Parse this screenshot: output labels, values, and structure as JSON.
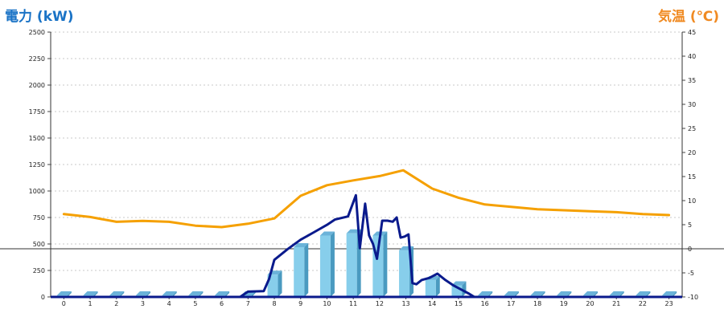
{
  "chart_data": {
    "type": "bar",
    "left_axis": {
      "title": "電力 (kW)",
      "min": 0,
      "max": 2500,
      "ticks": [
        "0",
        "250",
        "500",
        "750",
        "1000",
        "1250",
        "1500",
        "1750",
        "2000",
        "2250",
        "2500"
      ]
    },
    "right_axis": {
      "title": "気温 (℃)",
      "min": -10,
      "max": 45,
      "ticks": [
        "-10",
        "-5",
        "0",
        "5",
        "10",
        "15",
        "20",
        "25",
        "30",
        "35",
        "40",
        "45"
      ]
    },
    "categories": [
      "0",
      "1",
      "2",
      "3",
      "4",
      "5",
      "6",
      "7",
      "8",
      "9",
      "10",
      "11",
      "12",
      "13",
      "14",
      "15",
      "16",
      "17",
      "18",
      "19",
      "20",
      "21",
      "22",
      "23"
    ],
    "grid": true,
    "colors": {
      "bar": "#87ceeb",
      "bar_side": "#4a9ac0",
      "bar_top": "#6bb3d9",
      "power_line": "#0a1a8c",
      "temp_line": "#f5a000",
      "zero_line": "#333333"
    },
    "series": [
      {
        "axis": "left",
        "type": "bar",
        "values": [
          0,
          0,
          0,
          0,
          0,
          0,
          0,
          0,
          210,
          470,
          580,
          600,
          580,
          440,
          160,
          110,
          0,
          0,
          0,
          0,
          0,
          0,
          0,
          0
        ]
      },
      {
        "axis": "left",
        "type": "line",
        "points": [
          [
            0,
            0
          ],
          [
            1,
            0
          ],
          [
            2,
            0
          ],
          [
            3,
            0
          ],
          [
            4,
            0
          ],
          [
            5,
            0
          ],
          [
            6,
            0
          ],
          [
            6.7,
            0
          ],
          [
            7,
            50
          ],
          [
            7.6,
            55
          ],
          [
            7.8,
            170
          ],
          [
            8,
            350
          ],
          [
            8.5,
            450
          ],
          [
            9,
            540
          ],
          [
            9.5,
            610
          ],
          [
            10,
            680
          ],
          [
            10.3,
            730
          ],
          [
            10.8,
            760
          ],
          [
            11.1,
            960
          ],
          [
            11.25,
            460
          ],
          [
            11.45,
            880
          ],
          [
            11.6,
            580
          ],
          [
            11.75,
            500
          ],
          [
            11.9,
            360
          ],
          [
            12.1,
            720
          ],
          [
            12.3,
            720
          ],
          [
            12.5,
            710
          ],
          [
            12.65,
            750
          ],
          [
            12.8,
            560
          ],
          [
            12.95,
            570
          ],
          [
            13.1,
            590
          ],
          [
            13.25,
            130
          ],
          [
            13.4,
            120
          ],
          [
            13.6,
            160
          ],
          [
            13.9,
            180
          ],
          [
            14.2,
            220
          ],
          [
            14.5,
            160
          ],
          [
            14.8,
            110
          ],
          [
            15.1,
            70
          ],
          [
            15.4,
            30
          ],
          [
            15.6,
            0
          ],
          [
            16,
            0
          ],
          [
            17,
            0
          ],
          [
            18,
            0
          ],
          [
            19,
            0
          ],
          [
            20,
            0
          ],
          [
            21,
            0
          ],
          [
            22,
            0
          ],
          [
            23,
            0
          ]
        ]
      },
      {
        "axis": "right",
        "type": "line",
        "points": [
          [
            0,
            7.2
          ],
          [
            1,
            6.6
          ],
          [
            2,
            5.6
          ],
          [
            3,
            5.8
          ],
          [
            4,
            5.6
          ],
          [
            5,
            4.8
          ],
          [
            6,
            4.5
          ],
          [
            7,
            5.2
          ],
          [
            8,
            6.3
          ],
          [
            9,
            11
          ],
          [
            10,
            13.2
          ],
          [
            11,
            14.2
          ],
          [
            12,
            15.1
          ],
          [
            12.9,
            16.3
          ],
          [
            14,
            12.5
          ],
          [
            15,
            10.6
          ],
          [
            16,
            9.2
          ],
          [
            17,
            8.7
          ],
          [
            18,
            8.2
          ],
          [
            19,
            8
          ],
          [
            20,
            7.8
          ],
          [
            21,
            7.6
          ],
          [
            22,
            7.2
          ],
          [
            23,
            7
          ]
        ]
      }
    ]
  }
}
